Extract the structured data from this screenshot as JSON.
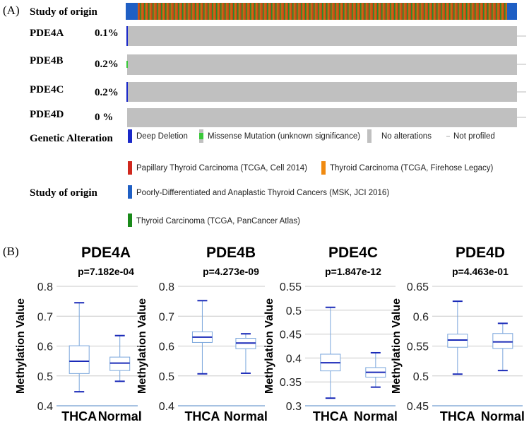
{
  "panel_a": {
    "label": "(A)",
    "study_title": "Study of origin",
    "genes": [
      {
        "name": "PDE4A",
        "pct": "0.1%"
      },
      {
        "name": "PDE4B",
        "pct": "0.2%"
      },
      {
        "name": "PDE4C",
        "pct": "0.2%"
      },
      {
        "name": "PDE4D",
        "pct": "0 %"
      }
    ],
    "genetic_alteration": {
      "title": "Genetic Alteration",
      "items": [
        "Deep Deletion",
        "Missense Mutation (unknown significance)",
        "No alterations",
        "Not profiled"
      ]
    },
    "study_legend": {
      "title": "Study of origin",
      "items": [
        "Papillary Thyroid Carcinoma (TCGA, Cell 2014)",
        "Thyroid Carcinoma (TCGA, Firehose Legacy)",
        "Poorly-Differentiated and Anaplastic Thyroid Cancers (MSK, JCI 2016)",
        "Thyroid Carcinoma (TCGA, PanCancer Atlas)"
      ]
    }
  },
  "panel_b": {
    "label": "(B)",
    "charts": [
      {
        "type": "box",
        "title": "PDE4A",
        "p_value": "p=7.182e-04",
        "ylabel": "Methylation Value",
        "ylim": [
          0.4,
          0.8
        ],
        "yticks": [
          0.4,
          0.5,
          0.6,
          0.7,
          0.8
        ],
        "categories": [
          "THCA",
          "Normal"
        ],
        "boxes": [
          {
            "min": 0.447,
            "q1": 0.508,
            "median": 0.549,
            "q3": 0.601,
            "max": 0.745
          },
          {
            "min": 0.482,
            "q1": 0.518,
            "median": 0.543,
            "q3": 0.563,
            "max": 0.635
          }
        ]
      },
      {
        "type": "box",
        "title": "PDE4B",
        "p_value": "p=4.273e-09",
        "ylabel": "Methylation Value",
        "ylim": [
          0.4,
          0.8
        ],
        "yticks": [
          0.4,
          0.5,
          0.6,
          0.7,
          0.8
        ],
        "categories": [
          "THCA",
          "Normal"
        ],
        "boxes": [
          {
            "min": 0.507,
            "q1": 0.612,
            "median": 0.63,
            "q3": 0.648,
            "max": 0.752
          },
          {
            "min": 0.509,
            "q1": 0.591,
            "median": 0.61,
            "q3": 0.626,
            "max": 0.641
          }
        ]
      },
      {
        "type": "box",
        "title": "PDE4C",
        "p_value": "p=1.847e-12",
        "ylabel": "Methylation Value",
        "ylim": [
          0.3,
          0.55
        ],
        "yticks": [
          0.3,
          0.35,
          0.4,
          0.45,
          0.5,
          0.55
        ],
        "categories": [
          "THCA",
          "Normal"
        ],
        "boxes": [
          {
            "min": 0.316,
            "q1": 0.373,
            "median": 0.39,
            "q3": 0.408,
            "max": 0.506
          },
          {
            "min": 0.339,
            "q1": 0.36,
            "median": 0.37,
            "q3": 0.38,
            "max": 0.411
          }
        ]
      },
      {
        "type": "box",
        "title": "PDE4D",
        "p_value": "p=4.463e-01",
        "ylabel": "Methylation Value",
        "ylim": [
          0.45,
          0.65
        ],
        "yticks": [
          0.45,
          0.5,
          0.55,
          0.6,
          0.65
        ],
        "categories": [
          "THCA",
          "Normal"
        ],
        "boxes": [
          {
            "min": 0.503,
            "q1": 0.548,
            "median": 0.56,
            "q3": 0.57,
            "max": 0.625
          },
          {
            "min": 0.509,
            "q1": 0.546,
            "median": 0.557,
            "q3": 0.571,
            "max": 0.588
          }
        ]
      }
    ]
  }
}
